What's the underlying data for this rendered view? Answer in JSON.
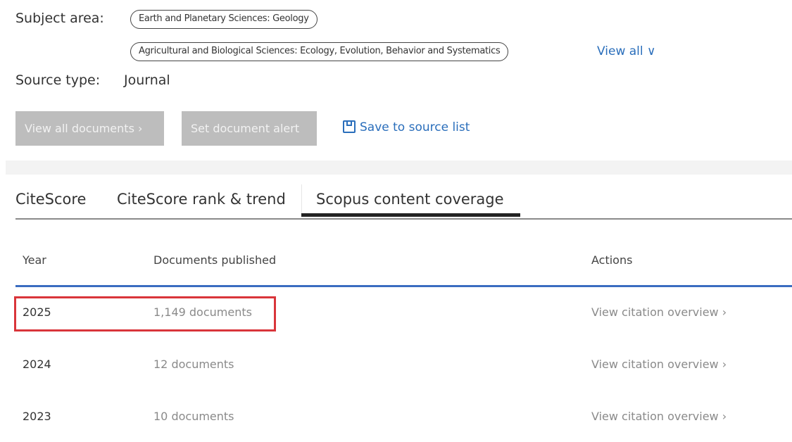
{
  "subject_area": {
    "label": "Subject area:",
    "tags": [
      "Earth and Planetary Sciences: Geology",
      "Agricultural and Biological Sciences: Ecology, Evolution, Behavior and Systematics"
    ],
    "view_all": "View all ∨"
  },
  "source_type": {
    "label": "Source type:",
    "value": "Journal"
  },
  "actions": {
    "view_all_documents": "View all documents ›",
    "set_alert": "Set document alert",
    "save": "Save to source list"
  },
  "tabs": [
    {
      "label": "CiteScore"
    },
    {
      "label": "CiteScore rank & trend"
    },
    {
      "label": "Scopus content coverage",
      "active": true
    }
  ],
  "table": {
    "headers": [
      "Year",
      "Documents published",
      "Actions"
    ],
    "rows": [
      {
        "year": "2025",
        "docs": "1,149 documents",
        "action": "View citation overview ›"
      },
      {
        "year": "2024",
        "docs": "12 documents",
        "action": "View citation overview ›"
      },
      {
        "year": "2023",
        "docs": "10 documents",
        "action": "View citation overview ›"
      }
    ]
  },
  "colors": {
    "link": "#2a6ebb",
    "highlight": "#d9353a",
    "table_rule": "#3b6cc0"
  }
}
